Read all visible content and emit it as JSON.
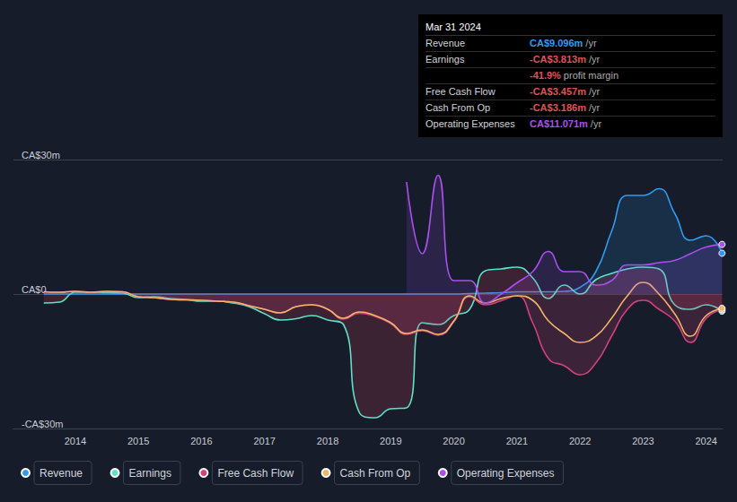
{
  "chart_data": {
    "type": "line",
    "x": [
      2013.5,
      2013.75,
      2014,
      2014.25,
      2014.5,
      2014.75,
      2015,
      2015.25,
      2015.5,
      2015.75,
      2016,
      2016.25,
      2016.5,
      2016.75,
      2017,
      2017.25,
      2017.5,
      2017.75,
      2018,
      2018.25,
      2018.5,
      2018.75,
      2019,
      2019.25,
      2019.5,
      2019.75,
      2020,
      2020.25,
      2020.5,
      2020.75,
      2021,
      2021.25,
      2021.5,
      2021.75,
      2022,
      2022.25,
      2022.5,
      2022.75,
      2023,
      2023.25,
      2023.5,
      2023.75,
      2024,
      2024.25
    ],
    "series": [
      {
        "name": "Revenue",
        "color": "#2e9cf0",
        "values": [
          0,
          0,
          0,
          0,
          0,
          0,
          0,
          0,
          0,
          0,
          0,
          0,
          0,
          0,
          0,
          0,
          0,
          0,
          0,
          0,
          0,
          0,
          0,
          0,
          0,
          0,
          0,
          0.1,
          0.2,
          0.3,
          0.5,
          0.5,
          0.5,
          0.6,
          1.5,
          5,
          14,
          22,
          22,
          23.5,
          18,
          12,
          13,
          9.096
        ]
      },
      {
        "name": "Earnings",
        "color": "#5ee0c8",
        "values": [
          -2,
          -1.8,
          0.4,
          0.4,
          0.3,
          0.2,
          -0.8,
          -0.6,
          -1,
          -1.2,
          -1.6,
          -1.6,
          -2,
          -2.8,
          -4.4,
          -5.8,
          -5.5,
          -4.8,
          -5.8,
          -6.8,
          -26.4,
          -27.6,
          -25.6,
          -25.4,
          -6.4,
          -6.8,
          -4.8,
          -3.4,
          5.2,
          5.6,
          6,
          3.6,
          -1,
          2,
          0,
          3.2,
          4.6,
          5.6,
          6,
          5.6,
          -2.4,
          -3.4,
          -2.4,
          -3.813
        ]
      },
      {
        "name": "Free Cash Flow",
        "color": "#d6407a",
        "values": [
          0.5,
          0.4,
          0.6,
          0.4,
          0.6,
          0.5,
          -0.6,
          -0.8,
          -1.2,
          -1.3,
          -1.4,
          -1.6,
          -1.8,
          -2.6,
          -3.4,
          -4.2,
          -2.8,
          -2.4,
          -3.4,
          -5.6,
          -4.3,
          -5,
          -6.6,
          -9,
          -8.2,
          -9.2,
          -6.2,
          -0.6,
          -2.4,
          -1.5,
          -0.4,
          -6.4,
          -14.4,
          -16,
          -18,
          -15.4,
          -9.4,
          -3.4,
          -1.4,
          -3.4,
          -6,
          -10.8,
          -5.4,
          -3.457
        ]
      },
      {
        "name": "Cash From Op",
        "color": "#f0b46a",
        "values": [
          0.5,
          0.4,
          0.6,
          0.4,
          0.6,
          0.5,
          -0.6,
          -0.8,
          -1.2,
          -1.3,
          -1.4,
          -1.6,
          -1.8,
          -2.6,
          -3.4,
          -4.2,
          -2.8,
          -2.4,
          -3.4,
          -5.4,
          -4,
          -4.8,
          -6.4,
          -8.8,
          -8,
          -9,
          -6,
          -0.4,
          -2,
          -1,
          -0.4,
          -1.4,
          -6,
          -8.8,
          -10.8,
          -9.4,
          -5.4,
          -0.4,
          2.6,
          0,
          -4.4,
          -9.4,
          -4.8,
          -3.186
        ]
      },
      {
        "name": "Operating Expenses",
        "color": "#a94ff0",
        "values": [
          null,
          null,
          null,
          null,
          null,
          null,
          null,
          null,
          null,
          null,
          null,
          null,
          null,
          null,
          null,
          null,
          null,
          null,
          null,
          null,
          null,
          null,
          null,
          25,
          9,
          26.5,
          3,
          3,
          -2,
          0,
          2.5,
          5,
          9.5,
          5,
          5,
          2,
          3,
          6.5,
          6.5,
          7,
          7.5,
          9,
          10.5,
          11.071
        ]
      }
    ],
    "xlim": [
      2013.02,
      2024.26
    ],
    "xticks": [
      2014,
      2015,
      2016,
      2017,
      2018,
      2019,
      2020,
      2021,
      2022,
      2023,
      2024
    ],
    "ylim": [
      -30,
      30
    ],
    "yticks": [
      {
        "value": -30,
        "label": "-CA$30m"
      },
      {
        "value": 0,
        "label": "CA$0"
      },
      {
        "value": 30,
        "label": "CA$30m"
      }
    ],
    "grid": true,
    "legend": "bottom-left",
    "annotations": {
      "title": "Mar 31 2024",
      "rows": [
        {
          "label": "Revenue",
          "value": "CA$9.096m",
          "unit": "/yr",
          "color": "#2e9cf0"
        },
        {
          "label": "Earnings",
          "value": "-CA$3.813m",
          "unit": "/yr",
          "color": "#e0505a"
        },
        {
          "value": "-41.9%",
          "unit": "profit margin",
          "color": "#e0505a"
        },
        {
          "label": "Free Cash Flow",
          "value": "-CA$3.457m",
          "unit": "/yr",
          "color": "#e0505a"
        },
        {
          "label": "Cash From Op",
          "value": "-CA$3.186m",
          "unit": "/yr",
          "color": "#e0505a"
        },
        {
          "label": "Operating Expenses",
          "value": "CA$11.071m",
          "unit": "/yr",
          "color": "#a94ff0"
        }
      ]
    }
  }
}
